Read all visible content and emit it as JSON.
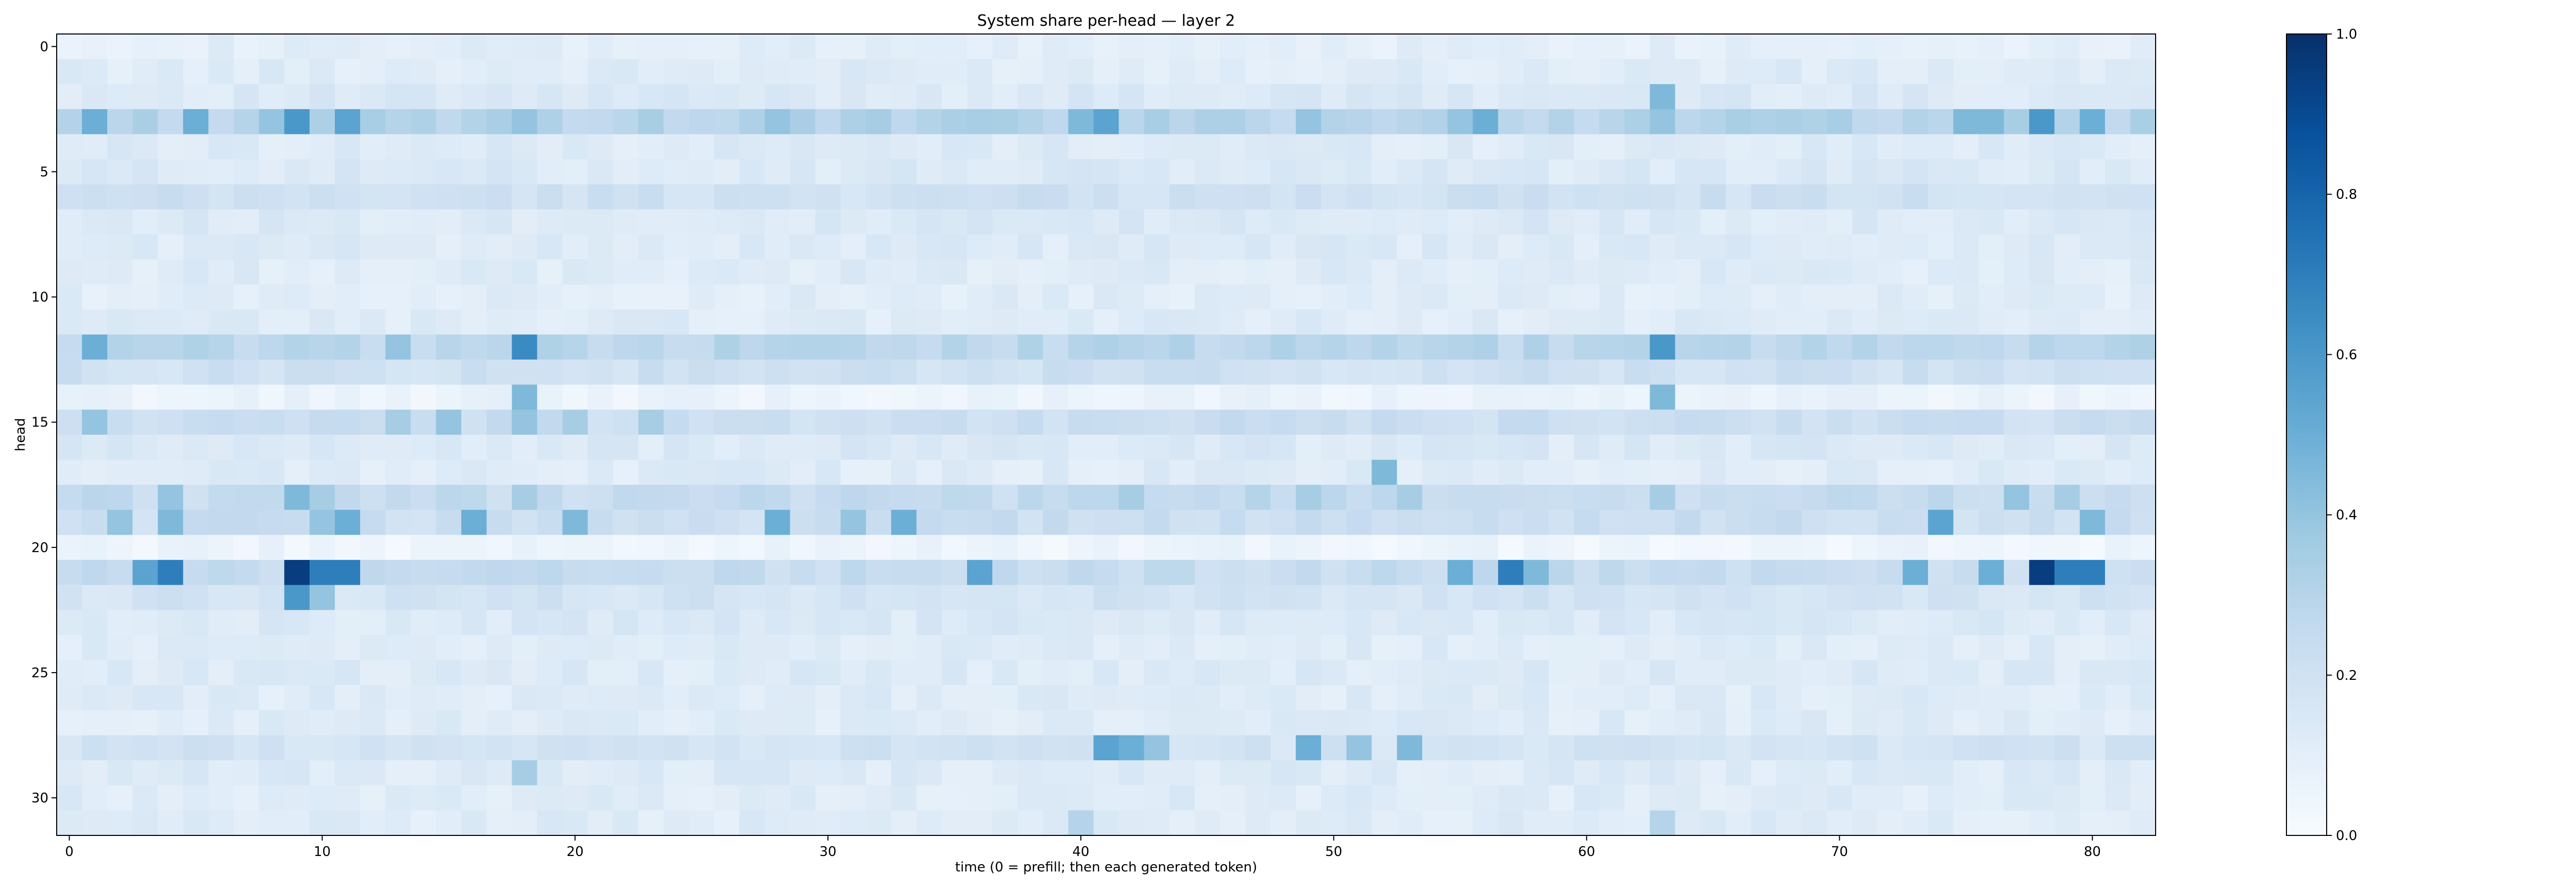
{
  "chart_data": {
    "type": "heatmap",
    "title": "System share per-head — layer 2",
    "xlabel": "time (0 = prefill; then each generated token)",
    "ylabel": "head",
    "x_count": 83,
    "y_count": 32,
    "x_ticks": [
      0,
      10,
      20,
      30,
      40,
      50,
      60,
      70,
      80
    ],
    "y_ticks": [
      0,
      5,
      10,
      15,
      20,
      25,
      30
    ],
    "colorbar": {
      "min": 0.0,
      "max": 1.0,
      "ticks": [
        "0.0",
        "0.2",
        "0.4",
        "0.6",
        "0.8",
        "1.0"
      ],
      "colormap": "Blues"
    },
    "baseline": [
      0.1,
      0.12,
      0.14,
      0.3,
      0.13,
      0.14,
      0.2,
      0.14,
      0.13,
      0.12,
      0.11,
      0.12,
      0.28,
      0.2,
      0.06,
      0.22,
      0.14,
      0.12,
      0.24,
      0.22,
      0.05,
      0.24,
      0.18,
      0.14,
      0.12,
      0.13,
      0.12,
      0.12,
      0.18,
      0.13,
      0.12,
      0.12
    ],
    "highlights": [
      {
        "head": 3,
        "cols": [
          1,
          5,
          8,
          9,
          11,
          18,
          28,
          32,
          40,
          41,
          49,
          55,
          56,
          63,
          75,
          76,
          78,
          80
        ],
        "values": [
          0.5,
          0.5,
          0.4,
          0.6,
          0.55,
          0.4,
          0.4,
          0.35,
          0.45,
          0.55,
          0.4,
          0.4,
          0.5,
          0.4,
          0.45,
          0.45,
          0.6,
          0.5
        ]
      },
      {
        "head": 2,
        "cols": [
          63
        ],
        "values": [
          0.45
        ]
      },
      {
        "head": 12,
        "cols": [
          1,
          13,
          18,
          42,
          63
        ],
        "values": [
          0.5,
          0.4,
          0.65,
          0.3,
          0.6
        ]
      },
      {
        "head": 14,
        "cols": [
          18,
          63
        ],
        "values": [
          0.45,
          0.45
        ]
      },
      {
        "head": 15,
        "cols": [
          1,
          13,
          15,
          18,
          20,
          23
        ],
        "values": [
          0.4,
          0.35,
          0.4,
          0.4,
          0.35,
          0.35
        ]
      },
      {
        "head": 17,
        "cols": [
          52
        ],
        "values": [
          0.45
        ]
      },
      {
        "head": 18,
        "cols": [
          4,
          9,
          10,
          18,
          42,
          47,
          49,
          53,
          63,
          77,
          79
        ],
        "values": [
          0.4,
          0.45,
          0.35,
          0.35,
          0.35,
          0.3,
          0.35,
          0.35,
          0.35,
          0.4,
          0.35
        ]
      },
      {
        "head": 19,
        "cols": [
          2,
          4,
          10,
          11,
          16,
          20,
          28,
          31,
          33,
          74,
          80
        ],
        "values": [
          0.4,
          0.45,
          0.4,
          0.5,
          0.5,
          0.45,
          0.5,
          0.4,
          0.5,
          0.55,
          0.45
        ]
      },
      {
        "head": 21,
        "cols": [
          3,
          4,
          9,
          10,
          11,
          36,
          55,
          57,
          58,
          73,
          76,
          78,
          79,
          80
        ],
        "values": [
          0.55,
          0.7,
          0.95,
          0.7,
          0.7,
          0.55,
          0.5,
          0.7,
          0.45,
          0.5,
          0.5,
          0.95,
          0.7,
          0.7
        ]
      },
      {
        "head": 22,
        "cols": [
          9,
          10
        ],
        "values": [
          0.6,
          0.4
        ]
      },
      {
        "head": 28,
        "cols": [
          41,
          42,
          43,
          49,
          51,
          53
        ],
        "values": [
          0.55,
          0.5,
          0.4,
          0.5,
          0.4,
          0.45
        ]
      },
      {
        "head": 29,
        "cols": [
          18
        ],
        "values": [
          0.35
        ]
      },
      {
        "head": 31,
        "cols": [
          40,
          63
        ],
        "values": [
          0.3,
          0.3
        ]
      }
    ]
  }
}
